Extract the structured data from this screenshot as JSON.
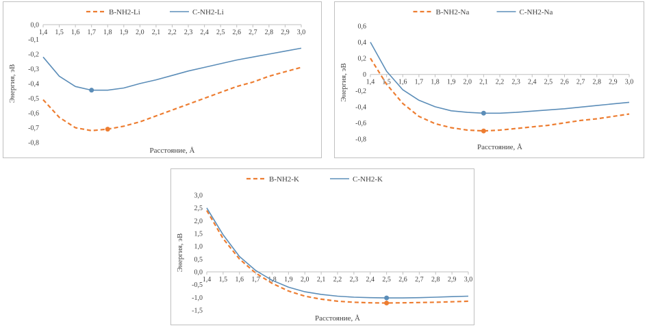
{
  "colors": {
    "b_series": "#ED7D31",
    "c_series": "#5B8DB8",
    "axis": "#BFBFBF"
  },
  "chart_data": [
    {
      "type": "line",
      "xlabel": "Расстояние, Å",
      "ylabel": "Энергия, эВ",
      "xlim": [
        1.4,
        3.0
      ],
      "ylim": [
        -0.8,
        0.0
      ],
      "y_ticks": [
        "0,0",
        "-0,1",
        "-0,2",
        "-0,3",
        "-0,4",
        "-0,5",
        "-0,6",
        "-0,7",
        "-0,8"
      ],
      "x_ticks": [
        "1,4",
        "1,5",
        "1,6",
        "1,7",
        "1,8",
        "1,9",
        "2,0",
        "2,1",
        "2,2",
        "2,3",
        "2,4",
        "2,5",
        "2,6",
        "2,7",
        "2,8",
        "2,9",
        "3,0"
      ],
      "legend": "top-center",
      "series": [
        {
          "name": "B-NH2-Li",
          "style": "dashed",
          "color": "#ED7D31",
          "x": [
            1.4,
            1.5,
            1.6,
            1.7,
            1.8,
            1.9,
            2.0,
            2.1,
            2.2,
            2.3,
            2.4,
            2.5,
            2.6,
            2.7,
            2.8,
            2.9,
            3.0
          ],
          "y": [
            -0.51,
            -0.63,
            -0.7,
            -0.72,
            -0.71,
            -0.69,
            -0.66,
            -0.62,
            -0.58,
            -0.54,
            -0.5,
            -0.46,
            -0.42,
            -0.39,
            -0.35,
            -0.32,
            -0.29
          ],
          "marker": {
            "x": 1.8,
            "y": -0.71
          }
        },
        {
          "name": "C-NH2-Li",
          "style": "solid",
          "color": "#5B8DB8",
          "x": [
            1.4,
            1.5,
            1.6,
            1.7,
            1.8,
            1.9,
            2.0,
            2.1,
            2.2,
            2.3,
            2.4,
            2.5,
            2.6,
            2.7,
            2.8,
            2.9,
            3.0
          ],
          "y": [
            -0.22,
            -0.35,
            -0.42,
            -0.445,
            -0.445,
            -0.43,
            -0.4,
            -0.375,
            -0.345,
            -0.315,
            -0.29,
            -0.265,
            -0.24,
            -0.22,
            -0.2,
            -0.18,
            -0.16
          ],
          "marker": {
            "x": 1.7,
            "y": -0.445
          }
        }
      ]
    },
    {
      "type": "line",
      "xlabel": "Расстояние, Å",
      "ylabel": "Энергия, эВ",
      "xlim": [
        1.4,
        3.0
      ],
      "ylim": [
        -0.8,
        0.6
      ],
      "y_ticks": [
        "0,6",
        "0,4",
        "0,2",
        "0",
        "-0,2",
        "-0,4",
        "-0,6",
        "-0,8"
      ],
      "x_ticks": [
        "1,4",
        "1,5",
        "1,6",
        "1,7",
        "1,8",
        "1,9",
        "2,0",
        "2,1",
        "2,2",
        "2,3",
        "2,4",
        "2,5",
        "2,6",
        "2,7",
        "2,8",
        "2,9",
        "3,0"
      ],
      "legend": "top-center",
      "series": [
        {
          "name": "B-NH2-Na",
          "style": "dashed",
          "color": "#ED7D31",
          "x": [
            1.4,
            1.5,
            1.6,
            1.7,
            1.8,
            1.9,
            2.0,
            2.1,
            2.2,
            2.3,
            2.4,
            2.5,
            2.6,
            2.7,
            2.8,
            2.9,
            3.0
          ],
          "y": [
            0.2,
            -0.12,
            -0.36,
            -0.52,
            -0.61,
            -0.66,
            -0.69,
            -0.7,
            -0.69,
            -0.67,
            -0.65,
            -0.63,
            -0.6,
            -0.57,
            -0.55,
            -0.52,
            -0.49
          ],
          "marker": {
            "x": 2.1,
            "y": -0.7
          }
        },
        {
          "name": "C-NH2-Na",
          "style": "solid",
          "color": "#5B8DB8",
          "x": [
            1.4,
            1.5,
            1.6,
            1.7,
            1.8,
            1.9,
            2.0,
            2.1,
            2.2,
            2.3,
            2.4,
            2.5,
            2.6,
            2.7,
            2.8,
            2.9,
            3.0
          ],
          "y": [
            0.4,
            0.04,
            -0.19,
            -0.32,
            -0.4,
            -0.45,
            -0.47,
            -0.48,
            -0.48,
            -0.47,
            -0.455,
            -0.44,
            -0.425,
            -0.405,
            -0.385,
            -0.365,
            -0.345
          ],
          "marker": {
            "x": 2.1,
            "y": -0.48
          }
        }
      ]
    },
    {
      "type": "line",
      "xlabel": "Расстояние, Å",
      "ylabel": "Энергия, эВ",
      "xlim": [
        1.4,
        3.0
      ],
      "ylim": [
        -1.5,
        3.0
      ],
      "y_ticks": [
        "3,0",
        "2,5",
        "2,0",
        "1,5",
        "1,0",
        "0,5",
        "0,0",
        "-0,5",
        "-1,0",
        "-1,5"
      ],
      "x_ticks": [
        "1,4",
        "1,5",
        "1,6",
        "1,7",
        "1,8",
        "1,9",
        "2,0",
        "2,1",
        "2,2",
        "2,3",
        "2,4",
        "2,5",
        "2,6",
        "2,7",
        "2,8",
        "2,9",
        "3,0"
      ],
      "legend": "top-center",
      "series": [
        {
          "name": "B-NH2-K",
          "style": "dashed",
          "color": "#ED7D31",
          "x": [
            1.4,
            1.5,
            1.6,
            1.7,
            1.8,
            1.9,
            2.0,
            2.1,
            2.2,
            2.3,
            2.4,
            2.5,
            2.6,
            2.7,
            2.8,
            2.9,
            3.0
          ],
          "y": [
            2.4,
            1.3,
            0.5,
            -0.05,
            -0.45,
            -0.75,
            -0.95,
            -1.07,
            -1.15,
            -1.19,
            -1.21,
            -1.22,
            -1.21,
            -1.2,
            -1.19,
            -1.17,
            -1.15
          ],
          "marker": {
            "x": 2.5,
            "y": -1.22
          }
        },
        {
          "name": "C-NH2-K",
          "style": "solid",
          "color": "#5B8DB8",
          "x": [
            1.4,
            1.5,
            1.6,
            1.7,
            1.8,
            1.9,
            2.0,
            2.1,
            2.2,
            2.3,
            2.4,
            2.5,
            2.6,
            2.7,
            2.8,
            2.9,
            3.0
          ],
          "y": [
            2.5,
            1.45,
            0.6,
            0.05,
            -0.33,
            -0.6,
            -0.78,
            -0.88,
            -0.95,
            -0.99,
            -1.01,
            -1.02,
            -1.02,
            -1.01,
            -0.99,
            -0.97,
            -0.95
          ],
          "marker": {
            "x": 2.5,
            "y": -1.02
          }
        }
      ]
    }
  ]
}
